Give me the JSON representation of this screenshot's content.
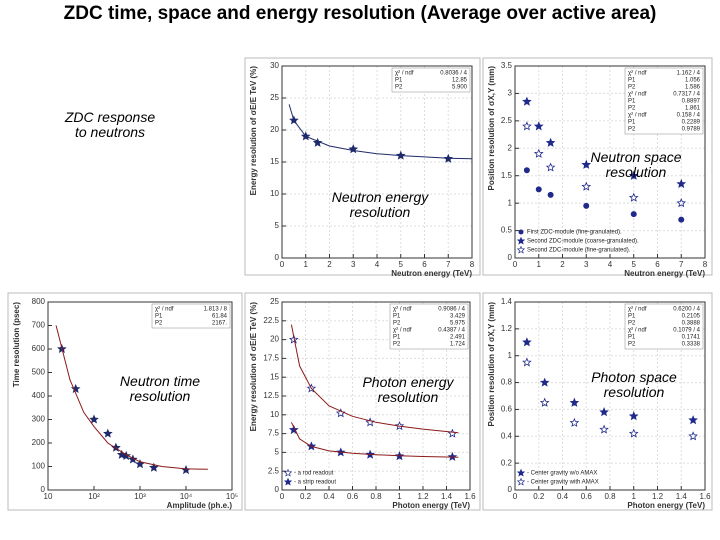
{
  "title": "ZDC time, space and energy resolution (Average over active area)",
  "annotations": [
    "ZDC response to neutrons",
    "Neutron space resolution",
    "Neutron energy resolution",
    "Neutron time resolution",
    "Photon energy resolution",
    "Photon space resolution"
  ],
  "chart_data": [
    {
      "type": "scatter",
      "x_label": "Neutron energy (TeV)",
      "y_label": "Energy resolution of σE/E TeV (%)",
      "xlim": [
        0,
        8
      ],
      "xticks": [
        0,
        1,
        2,
        3,
        4,
        5,
        6,
        7,
        8
      ],
      "ylim": [
        0,
        30
      ],
      "yticks": [
        0,
        5,
        10,
        15,
        20,
        25,
        30
      ],
      "grid": true,
      "stats": [
        [
          "χ² / ndf",
          "0.8036 / 4"
        ],
        [
          "P1",
          "12.85"
        ],
        [
          "P2",
          "5.900"
        ]
      ],
      "series": [
        {
          "marker": "star",
          "color": "#1f2a6b",
          "x": [
            0.5,
            1,
            1.5,
            3,
            5,
            7
          ],
          "values": [
            21.5,
            19,
            18,
            17,
            16,
            15.5
          ]
        },
        {
          "marker": "line",
          "color": "#1f2a6b",
          "x": [
            0.3,
            0.5,
            1,
            2,
            3,
            4,
            5,
            6,
            7,
            8
          ],
          "values": [
            24,
            21.5,
            19,
            17.5,
            16.8,
            16.3,
            16,
            15.8,
            15.6,
            15.5
          ]
        }
      ]
    },
    {
      "type": "scatter",
      "x_label": "Neutron energy (TeV)",
      "y_label": "Position resolution of σX,Y (mm)",
      "xlim": [
        0,
        8
      ],
      "xticks": [
        0,
        1,
        2,
        3,
        4,
        5,
        6,
        7,
        8
      ],
      "ylim": [
        0,
        3.5
      ],
      "yticks": [
        0,
        0.5,
        1,
        1.5,
        2,
        2.5,
        3,
        3.5
      ],
      "grid": true,
      "legend": "lower left",
      "stats": [
        [
          "χ² / ndf",
          "1.162 / 4"
        ],
        [
          "P1",
          "1.056"
        ],
        [
          "P2",
          "1.586"
        ],
        [
          "χ² / ndf",
          "0.7317 / 4"
        ],
        [
          "P1",
          "0.8897"
        ],
        [
          "P2",
          "1.861"
        ],
        [
          "χ² / ndf",
          "0.158 / 4"
        ],
        [
          "P1",
          "0.2289"
        ],
        [
          "P2",
          "0.9789"
        ]
      ],
      "series": [
        {
          "name": "First ZDC-module (fine-granulated).",
          "marker": "circle",
          "color": "#1f2a8b",
          "x": [
            0.5,
            1,
            1.5,
            3,
            5,
            7
          ],
          "values": [
            1.6,
            1.25,
            1.15,
            0.95,
            0.8,
            0.7
          ]
        },
        {
          "name": "Second ZDC-module (coarse-granulated).",
          "marker": "star",
          "color": "#1f2a8b",
          "x": [
            0.5,
            1,
            1.5,
            3,
            5,
            7
          ],
          "values": [
            2.85,
            2.4,
            2.1,
            1.7,
            1.5,
            1.35
          ]
        },
        {
          "name": "Second ZDC-module (fine-granulated).",
          "marker": "open-star",
          "color": "#1f2a8b",
          "x": [
            0.5,
            1,
            1.5,
            3,
            5,
            7
          ],
          "values": [
            2.4,
            1.9,
            1.65,
            1.3,
            1.1,
            1.0
          ]
        }
      ]
    },
    {
      "type": "scatter",
      "x_label": "Amplitude (ph.e.)",
      "y_label": "Time resolution (psec)",
      "xscale": "log",
      "xlim": [
        10,
        100000
      ],
      "xticks": [
        10,
        {
          "value": 100,
          "label": "10²"
        },
        {
          "value": 1000,
          "label": "10³"
        },
        {
          "value": 10000,
          "label": "10⁴"
        },
        {
          "value": 100000,
          "label": "10⁵"
        }
      ],
      "ylim": [
        0,
        800
      ],
      "yticks": [
        0,
        100,
        200,
        300,
        400,
        500,
        600,
        700,
        800
      ],
      "grid": false,
      "stats": [
        [
          "χ² / ndf",
          "1.813 / 8"
        ],
        [
          "P1",
          "61.84"
        ],
        [
          "P2",
          "2167."
        ]
      ],
      "series": [
        {
          "marker": "star",
          "color": "#1f2a6b",
          "x": [
            20,
            40,
            100,
            200,
            300,
            400,
            500,
            700,
            1000,
            2000,
            10000
          ],
          "values": [
            600,
            430,
            300,
            240,
            180,
            150,
            145,
            130,
            110,
            95,
            85
          ]
        },
        {
          "marker": "line",
          "color": "#8b1a1a",
          "x": [
            15,
            30,
            60,
            100,
            200,
            500,
            1000,
            3000,
            10000,
            30000
          ],
          "values": [
            700,
            470,
            330,
            270,
            200,
            150,
            120,
            100,
            90,
            88
          ]
        }
      ]
    },
    {
      "type": "scatter",
      "x_label": "Photon energy (TeV)",
      "y_label": "Energy resolution of σE/E TeV (%)",
      "xlim": [
        0,
        1.6
      ],
      "xticks": [
        0,
        0.2,
        0.4,
        0.6,
        0.8,
        1,
        1.2,
        1.4,
        1.6
      ],
      "ylim": [
        0,
        25
      ],
      "yticks": [
        0,
        2.5,
        5,
        7.5,
        10,
        12.5,
        15,
        17.5,
        20,
        22.5,
        25
      ],
      "grid": true,
      "legend": "lower left",
      "stats": [
        [
          "χ² / ndf",
          "0.9086 / 4"
        ],
        [
          "P1",
          "3.429"
        ],
        [
          "P2",
          "5.975"
        ],
        [
          "χ² / ndf",
          "0.4387 / 4"
        ],
        [
          "P1",
          "2.491"
        ],
        [
          "P2",
          "1.724"
        ]
      ],
      "series": [
        {
          "name": "- a rod readout",
          "marker": "open-star",
          "color": "#1f2a8b",
          "x": [
            0.1,
            0.25,
            0.5,
            0.75,
            1,
            1.45
          ],
          "values": [
            20,
            13.5,
            10.2,
            9,
            8.5,
            7.5
          ]
        },
        {
          "name": "- a strip readout",
          "marker": "star",
          "color": "#1f2a8b",
          "x": [
            0.1,
            0.25,
            0.5,
            0.75,
            1,
            1.45
          ],
          "values": [
            8,
            5.8,
            5,
            4.7,
            4.5,
            4.4
          ]
        },
        {
          "marker": "line",
          "color": "#8b1a1a",
          "x": [
            0.08,
            0.15,
            0.25,
            0.4,
            0.6,
            0.8,
            1,
            1.2,
            1.5
          ],
          "values": [
            22,
            16.5,
            13.5,
            11.2,
            9.8,
            9,
            8.5,
            8.1,
            7.6
          ]
        },
        {
          "marker": "line",
          "color": "#8b1a1a",
          "x": [
            0.08,
            0.15,
            0.25,
            0.4,
            0.6,
            0.8,
            1,
            1.2,
            1.5
          ],
          "values": [
            9,
            6.8,
            5.8,
            5.2,
            4.9,
            4.7,
            4.55,
            4.45,
            4.35
          ]
        }
      ]
    },
    {
      "type": "scatter",
      "x_label": "Photon energy (TeV)",
      "y_label": "Position resolution of σX,Y (mm)",
      "xlim": [
        0,
        1.6
      ],
      "xticks": [
        0,
        0.2,
        0.4,
        0.6,
        0.8,
        1,
        1.2,
        1.4,
        1.6
      ],
      "ylim": [
        0,
        1.4
      ],
      "yticks": [
        0,
        0.2,
        0.4,
        0.6,
        0.8,
        1,
        1.2,
        1.4
      ],
      "grid": true,
      "legend": "lower left",
      "stats": [
        [
          "χ² / ndf",
          "0.6200 / 4"
        ],
        [
          "P1",
          "0.2105"
        ],
        [
          "P2",
          "0.3888"
        ],
        [
          "χ² / ndf",
          "0.1079 / 4"
        ],
        [
          "P1",
          "0.1741"
        ],
        [
          "P2",
          "0.3338"
        ]
      ],
      "series": [
        {
          "name": "- Center gravity w/o AMAX",
          "marker": "star",
          "color": "#1f2a8b",
          "x": [
            0.1,
            0.25,
            0.5,
            0.75,
            1,
            1.5
          ],
          "values": [
            1.1,
            0.8,
            0.65,
            0.58,
            0.55,
            0.52
          ]
        },
        {
          "name": "- Center gravity with AMAX",
          "marker": "open-star",
          "color": "#1f2a8b",
          "x": [
            0.1,
            0.25,
            0.5,
            0.75,
            1,
            1.5
          ],
          "values": [
            0.95,
            0.65,
            0.5,
            0.45,
            0.42,
            0.4
          ]
        }
      ]
    }
  ]
}
